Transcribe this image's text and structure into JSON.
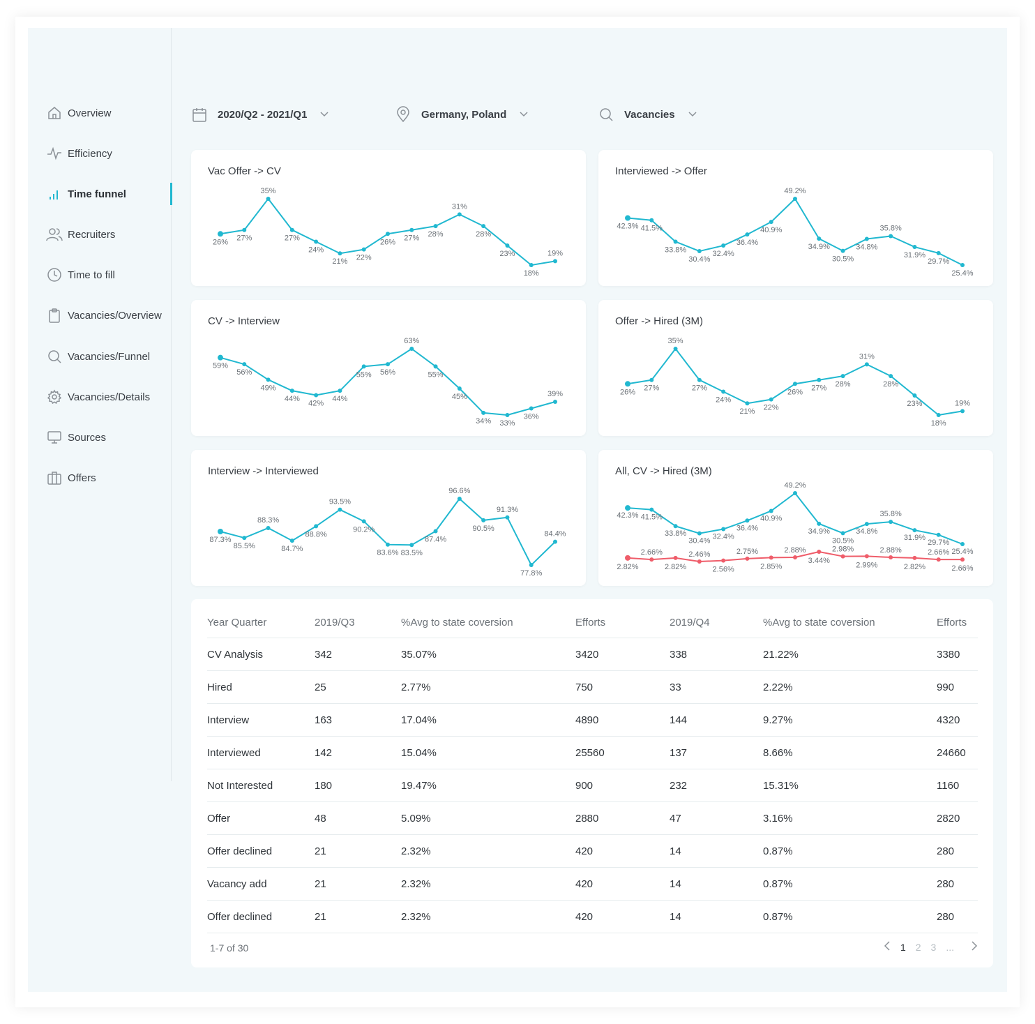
{
  "sidebar": {
    "items": [
      {
        "label": "Overview",
        "icon": "home-icon"
      },
      {
        "label": "Efficiency",
        "icon": "pulse-icon"
      },
      {
        "label": "Time funnel",
        "icon": "bar-chart-icon",
        "active": true
      },
      {
        "label": "Recruiters",
        "icon": "users-icon"
      },
      {
        "label": "Time to fill",
        "icon": "clock-icon"
      },
      {
        "label": "Vacancies/Overview",
        "icon": "clipboard-icon"
      },
      {
        "label": "Vacancies/Funnel",
        "icon": "search-icon"
      },
      {
        "label": "Vacancies/Details",
        "icon": "gear-icon"
      },
      {
        "label": "Sources",
        "icon": "monitor-icon"
      },
      {
        "label": "Offers",
        "icon": "briefcase-icon"
      }
    ]
  },
  "filters": {
    "period": "2020/Q2 - 2021/Q1",
    "location": "Germany, Poland",
    "search": "Vacancies"
  },
  "colors": {
    "accent": "#21b8d0",
    "series_red": "#ef5d6a"
  },
  "chart_data": [
    {
      "type": "line",
      "title": "Vac Offer -> CV",
      "series": [
        {
          "values": [
            26,
            27,
            35,
            27,
            24,
            21,
            22,
            26,
            27,
            28,
            31,
            28,
            23,
            18,
            19
          ],
          "labels": [
            "26%",
            "27%",
            "35%",
            "27%",
            "24%",
            "21%",
            "22%",
            "26%",
            "27%",
            "28%",
            "31%",
            "28%",
            "23%",
            "18%",
            "19%"
          ]
        }
      ]
    },
    {
      "type": "line",
      "title": "Interviewed -> Offer",
      "series": [
        {
          "values": [
            42.3,
            41.5,
            33.8,
            30.4,
            32.4,
            36.4,
            40.9,
            49.2,
            34.9,
            30.5,
            34.8,
            35.8,
            31.9,
            29.7,
            25.4
          ],
          "labels": [
            "42.3%",
            "41.5%",
            "33.8%",
            "30.4%",
            "32.4%",
            "36.4%",
            "40.9%",
            "49.2%",
            "34.9%",
            "30.5%",
            "34.8%",
            "35.8%",
            "31.9%",
            "29.7%",
            "25.4%"
          ]
        }
      ]
    },
    {
      "type": "line",
      "title": "CV -> Interview",
      "series": [
        {
          "values": [
            59,
            56,
            49,
            44,
            42,
            44,
            55,
            56,
            63,
            55,
            45,
            34,
            33,
            36,
            39
          ],
          "labels": [
            "59%",
            "56%",
            "49%",
            "44%",
            "42%",
            "44%",
            "55%",
            "56%",
            "63%",
            "55%",
            "45%",
            "34%",
            "33%",
            "36%",
            "39%"
          ]
        }
      ]
    },
    {
      "type": "line",
      "title": "Offer -> Hired (3M)",
      "series": [
        {
          "values": [
            26,
            27,
            35,
            27,
            24,
            21,
            22,
            26,
            27,
            28,
            31,
            28,
            23,
            18,
            19
          ],
          "labels": [
            "26%",
            "27%",
            "35%",
            "27%",
            "24%",
            "21%",
            "22%",
            "26%",
            "27%",
            "28%",
            "31%",
            "28%",
            "23%",
            "18%",
            "19%"
          ]
        }
      ]
    },
    {
      "type": "line",
      "title": "Interview -> Interviewed",
      "series": [
        {
          "values": [
            87.3,
            85.5,
            88.3,
            84.7,
            88.8,
            93.5,
            90.2,
            83.6,
            83.5,
            87.4,
            96.6,
            90.5,
            91.3,
            77.8,
            84.4
          ],
          "labels": [
            "87.3%",
            "85.5%",
            "88.3%",
            "84.7%",
            "88.8%",
            "93.5%",
            "90.2%",
            "83.6%",
            "83.5%",
            "87.4%",
            "96.6%",
            "90.5%",
            "91.3%",
            "77.8%",
            "84.4%"
          ]
        }
      ]
    },
    {
      "type": "line",
      "title": "All, CV -> Hired (3M)",
      "series": [
        {
          "values": [
            42.3,
            41.5,
            33.8,
            30.4,
            32.4,
            36.4,
            40.9,
            49.2,
            34.9,
            30.5,
            34.8,
            35.8,
            31.9,
            29.7,
            25.4
          ],
          "labels": [
            "42.3%",
            "41.5%",
            "33.8%",
            "30.4%",
            "32.4%",
            "36.4%",
            "40.9%",
            "49.2%",
            "34.9%",
            "30.5%",
            "34.8%",
            "35.8%",
            "31.9%",
            "29.7%",
            "25.4%"
          ]
        },
        {
          "values": [
            2.82,
            2.66,
            2.82,
            2.46,
            2.56,
            2.75,
            2.85,
            2.88,
            3.44,
            2.98,
            2.99,
            2.88,
            2.82,
            2.66,
            2.66
          ],
          "labels": [
            "2.82%",
            "2.66%",
            "2.82%",
            "2.46%",
            "2.56%",
            "2.75%",
            "2.85%",
            "2.88%",
            "3.44%",
            "2.98%",
            "2.99%",
            "2.88%",
            "2.82%",
            "2.66%",
            "2.66%"
          ]
        }
      ]
    }
  ],
  "table": {
    "headers": [
      "Year Quarter",
      "2019/Q3",
      "%Avg to state coversion",
      "Efforts",
      "2019/Q4",
      "%Avg to state coversion",
      "Efforts"
    ],
    "rows": [
      [
        "CV Analysis",
        "342",
        "35.07%",
        "3420",
        "338",
        "21.22%",
        "3380"
      ],
      [
        "Hired",
        "25",
        "2.77%",
        "750",
        "33",
        "2.22%",
        "990"
      ],
      [
        "Interview",
        "163",
        "17.04%",
        "4890",
        "144",
        "9.27%",
        "4320"
      ],
      [
        "Interviewed",
        "142",
        "15.04%",
        "25560",
        "137",
        "8.66%",
        "24660"
      ],
      [
        "Not Interested",
        "180",
        "19.47%",
        "900",
        "232",
        "15.31%",
        "1160"
      ],
      [
        "Offer",
        "48",
        "5.09%",
        "2880",
        "47",
        "3.16%",
        "2820"
      ],
      [
        "Offer declined",
        "21",
        "2.32%",
        "420",
        "14",
        "0.87%",
        "280"
      ],
      [
        "Vacancy add",
        "21",
        "2.32%",
        "420",
        "14",
        "0.87%",
        "280"
      ],
      [
        "Offer declined",
        "21",
        "2.32%",
        "420",
        "14",
        "0.87%",
        "280"
      ]
    ]
  },
  "pagination": {
    "summary": "1-7 of 30",
    "pages": [
      "1",
      "2",
      "3",
      "..."
    ],
    "current": "1"
  }
}
